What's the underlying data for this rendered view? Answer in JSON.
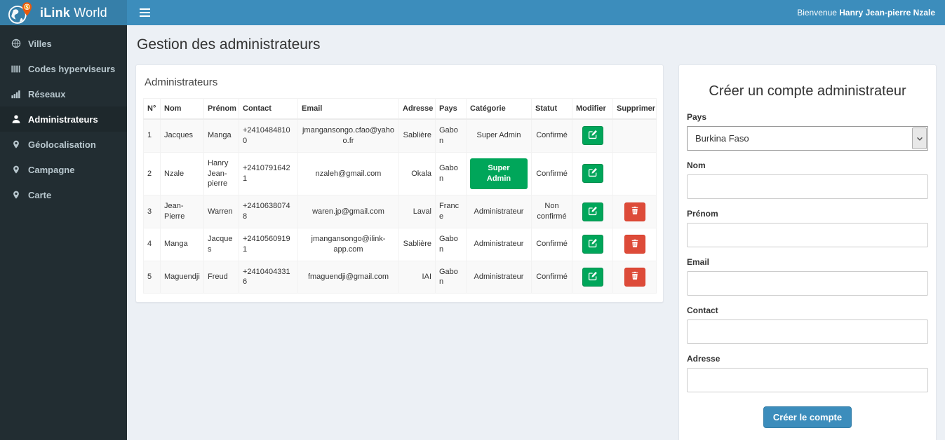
{
  "app": {
    "brand_bold": "iLink",
    "brand_regular": "World",
    "welcome_prefix": "Bienvenue",
    "welcome_user": "Hanry Jean-pierre Nzale"
  },
  "colors": {
    "navbar_blue": "#3c8dbc",
    "logo_blue": "#367fa9",
    "sidebar_dark": "#222d32",
    "green": "#00a65a",
    "red": "#dd4b39",
    "content_bg": "#ecf0f5"
  },
  "sidebar": {
    "items": [
      {
        "label": "Villes",
        "slug": "villes",
        "icon": "globe-icon",
        "active": false
      },
      {
        "label": "Codes hyperviseurs",
        "slug": "codes-hyperviseurs",
        "icon": "barcode-icon",
        "active": false
      },
      {
        "label": "Réseaux",
        "slug": "reseaux",
        "icon": "bar-chart-icon",
        "active": false
      },
      {
        "label": "Administrateurs",
        "slug": "administrateurs",
        "icon": "user-icon",
        "active": true
      },
      {
        "label": "Géolocalisation",
        "slug": "geolocalisation",
        "icon": "map-marker-icon",
        "active": false
      },
      {
        "label": "Campagne",
        "slug": "campagne",
        "icon": "map-marker-icon",
        "active": false
      },
      {
        "label": "Carte",
        "slug": "carte",
        "icon": "map-marker-icon",
        "active": false
      }
    ]
  },
  "page": {
    "title": "Gestion des administrateurs"
  },
  "table_panel": {
    "title": "Administrateurs",
    "columns": [
      "N°",
      "Nom",
      "Prénom",
      "Contact",
      "Email",
      "Adresse",
      "Pays",
      "Catégorie",
      "Statut",
      "Modifier",
      "Supprimer"
    ],
    "rows": [
      {
        "num": "1",
        "nom": "Jacques",
        "prenom": "Manga",
        "contact": "+24104848100",
        "email": "jmangansongo.cfao@yahoo.fr",
        "adresse": "Sablière",
        "pays": "Gabon",
        "categorie": "Super Admin",
        "categorie_style": "text",
        "statut": "Confirmé",
        "can_delete": false
      },
      {
        "num": "2",
        "nom": "Nzale",
        "prenom": "Hanry Jean-pierre",
        "contact": "+24107916421",
        "email": "nzaleh@gmail.com",
        "adresse": "Okala",
        "pays": "Gabon",
        "categorie": "Super Admin",
        "categorie_style": "button",
        "statut": "Confirmé",
        "can_delete": false
      },
      {
        "num": "3",
        "nom": "Jean-Pierre",
        "prenom": "Warren",
        "contact": "+24106380748",
        "email": "waren.jp@gmail.com",
        "adresse": "Laval",
        "pays": "France",
        "categorie": "Administrateur",
        "categorie_style": "text",
        "statut": "Non confirmé",
        "can_delete": true
      },
      {
        "num": "4",
        "nom": "Manga",
        "prenom": "Jacques",
        "contact": "+24105609191",
        "email": "jmangansongo@ilink-app.com",
        "adresse": "Sablière",
        "pays": "Gabon",
        "categorie": "Administrateur",
        "categorie_style": "text",
        "statut": "Confirmé",
        "can_delete": true
      },
      {
        "num": "5",
        "nom": "Maguendji",
        "prenom": "Freud",
        "contact": "+24104043316",
        "email": "fmaguendji@gmail.com",
        "adresse": "IAI",
        "pays": "Gabon",
        "categorie": "Administrateur",
        "categorie_style": "text",
        "statut": "Confirmé",
        "can_delete": true
      }
    ]
  },
  "form_panel": {
    "title": "Créer un compte administrateur",
    "fields": [
      {
        "label": "Pays",
        "name": "pays-select",
        "type": "select",
        "value": "Burkina Faso"
      },
      {
        "label": "Nom",
        "name": "nom-input",
        "type": "text",
        "value": ""
      },
      {
        "label": "Prénom",
        "name": "prenom-input",
        "type": "text",
        "value": ""
      },
      {
        "label": "Email",
        "name": "email-input",
        "type": "text",
        "value": ""
      },
      {
        "label": "Contact",
        "name": "contact-input",
        "type": "text",
        "value": ""
      },
      {
        "label": "Adresse",
        "name": "adresse-input",
        "type": "text",
        "value": ""
      }
    ],
    "submit_label": "Créer le compte"
  }
}
